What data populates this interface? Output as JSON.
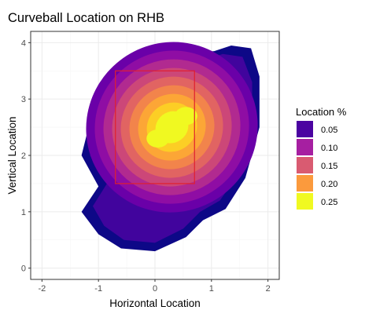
{
  "chart_data": {
    "type": "heatmap",
    "title": "Curveball Location on RHB",
    "xlabel": "Horizontal Location",
    "ylabel": "Vertical Location",
    "xlim": [
      -2.2,
      2.2
    ],
    "ylim": [
      -0.2,
      4.2
    ],
    "xticks": [
      -2,
      -1,
      0,
      1,
      2
    ],
    "yticks": [
      0,
      1,
      2,
      3,
      4
    ],
    "grid": true,
    "legend": {
      "title": "Location %",
      "position": "right",
      "entries": [
        {
          "label": "0.05",
          "color": "#4b03a1"
        },
        {
          "label": "0.10",
          "color": "#a61fa1"
        },
        {
          "label": "0.15",
          "color": "#d95b71"
        },
        {
          "label": "0.20",
          "color": "#fb9a3d"
        },
        {
          "label": "0.25",
          "color": "#f0f921"
        }
      ]
    },
    "strike_zone": {
      "x": [
        -0.7,
        0.7
      ],
      "y": [
        1.5,
        3.5
      ],
      "color": "#e0202e"
    },
    "density_peaks": [
      {
        "x": 0.05,
        "y": 2.3
      },
      {
        "x": 0.55,
        "y": 2.7
      }
    ],
    "level_colors": [
      "#0d0887",
      "#41049d",
      "#6a00a8",
      "#8f0da4",
      "#b12a90",
      "#cc4778",
      "#e16462",
      "#f2844b",
      "#fca636",
      "#fcce25",
      "#f0f921"
    ]
  }
}
